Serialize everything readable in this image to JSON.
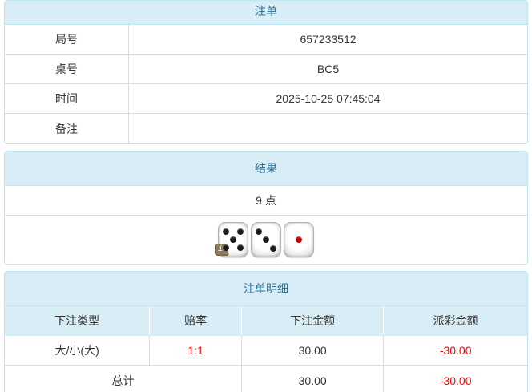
{
  "panel_bet": {
    "title": "注单",
    "rows": [
      {
        "label": "局号",
        "value": "657233512"
      },
      {
        "label": "桌号",
        "value": "BC5"
      },
      {
        "label": "时间",
        "value": "2025-10-25 07:45:04"
      },
      {
        "label": "备注",
        "value": ""
      }
    ]
  },
  "panel_result": {
    "title": "结果",
    "points": "9 点",
    "dice": [
      {
        "name": "die-1",
        "value": 5,
        "pip_color": "#1a1a1a"
      },
      {
        "name": "die-2",
        "value": 3,
        "pip_color": "#1a1a1a"
      },
      {
        "name": "die-3",
        "value": 1,
        "pip_color": "#c40000"
      }
    ],
    "info_badge": "i"
  },
  "panel_detail": {
    "title": "注单明细",
    "columns": [
      "下注类型",
      "赔率",
      "下注金额",
      "派彩金额"
    ],
    "rows": [
      {
        "type": "大/小(大)",
        "odds": "1:1",
        "amount": "30.00",
        "payout": "-30.00"
      }
    ],
    "total": {
      "label": "总计",
      "amount": "30.00",
      "payout": "-30.00"
    }
  },
  "colors": {
    "header_bg": "#d9edf7",
    "header_text": "#31708f",
    "panel_border": "#bce8f1",
    "row_border": "#dddddd",
    "text": "#333333",
    "negative": "#ff0000"
  }
}
